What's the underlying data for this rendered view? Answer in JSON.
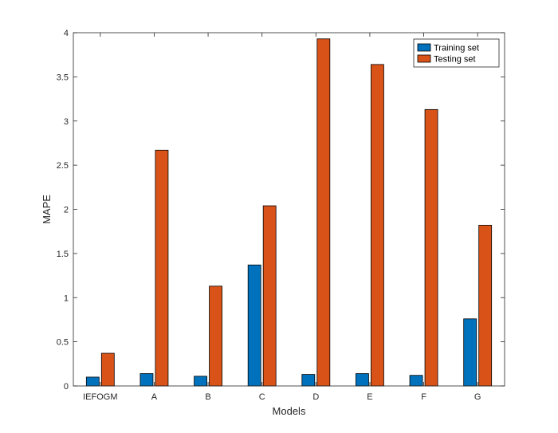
{
  "chart_data": {
    "type": "bar",
    "title": "",
    "xlabel": "Models",
    "ylabel": "MAPE",
    "categories": [
      "IEFOGM",
      "A",
      "B",
      "C",
      "D",
      "E",
      "F",
      "G"
    ],
    "series": [
      {
        "name": "Training set",
        "color": "#0072BD",
        "values": [
          0.1,
          0.14,
          0.11,
          1.37,
          0.13,
          0.14,
          0.12,
          0.76
        ]
      },
      {
        "name": "Testing set",
        "color": "#D95319",
        "values": [
          0.37,
          2.67,
          1.13,
          2.04,
          3.93,
          3.64,
          3.13,
          1.82
        ]
      }
    ],
    "ylim": [
      0,
      4
    ],
    "yticks": [
      0,
      0.5,
      1,
      1.5,
      2,
      2.5,
      3,
      3.5,
      4
    ],
    "ytick_labels": [
      "0",
      "0.5",
      "1",
      "1.5",
      "2",
      "2.5",
      "3",
      "3.5",
      "4"
    ],
    "grid": false,
    "legend_position": "top-right"
  }
}
